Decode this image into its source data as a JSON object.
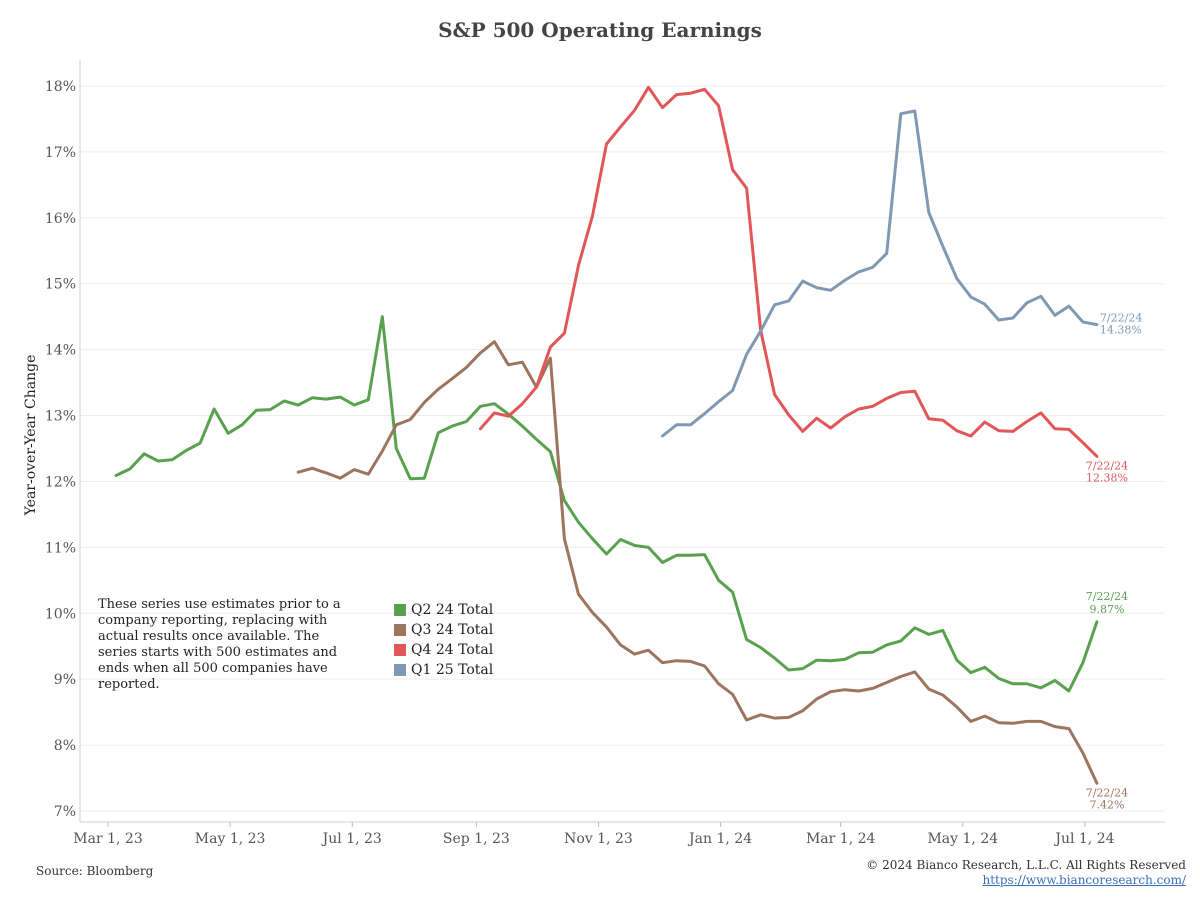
{
  "chart_data": {
    "type": "line",
    "title": "S&P 500 Operating Earnings",
    "ylabel": "Year-over-Year Change",
    "xlabel": "",
    "ylim": [
      7,
      18
    ],
    "xlim": [
      "2023-02-15",
      "2024-08-10"
    ],
    "yticks": [
      {
        "value": 7,
        "label": "7%"
      },
      {
        "value": 8,
        "label": "8%"
      },
      {
        "value": 9,
        "label": "9%"
      },
      {
        "value": 10,
        "label": "10%"
      },
      {
        "value": 11,
        "label": "11%"
      },
      {
        "value": 12,
        "label": "12%"
      },
      {
        "value": 13,
        "label": "13%"
      },
      {
        "value": 14,
        "label": "14%"
      },
      {
        "value": 15,
        "label": "15%"
      },
      {
        "value": 16,
        "label": "16%"
      },
      {
        "value": 17,
        "label": "17%"
      },
      {
        "value": 18,
        "label": "18%"
      }
    ],
    "xticks": [
      {
        "date": "2023-03-01",
        "label": "Mar 1, 23"
      },
      {
        "date": "2023-05-01",
        "label": "May 1, 23"
      },
      {
        "date": "2023-07-01",
        "label": "Jul 1, 23"
      },
      {
        "date": "2023-09-01",
        "label": "Sep 1, 23"
      },
      {
        "date": "2023-11-01",
        "label": "Nov 1, 23"
      },
      {
        "date": "2024-01-01",
        "label": "Jan 1, 24"
      },
      {
        "date": "2024-03-01",
        "label": "Mar 1, 24"
      },
      {
        "date": "2024-05-01",
        "label": "May 1, 24"
      },
      {
        "date": "2024-07-01",
        "label": "Jul 1, 24"
      }
    ],
    "grid": true,
    "legend_position": "bottom-left",
    "note": "These series use estimates prior to a company reporting, replacing with actual results once available. The series starts with 500 estimates and ends when all 500 companies have reported.",
    "series": [
      {
        "name": "Q2 24 Total",
        "color": "#59a14f",
        "end_label_date": "7/22/24",
        "end_label_value": "9.87%",
        "points": [
          [
            "2023-03-05",
            12.09
          ],
          [
            "2023-03-12",
            12.19
          ],
          [
            "2023-03-19",
            12.42
          ],
          [
            "2023-03-26",
            12.31
          ],
          [
            "2023-04-02",
            12.33
          ],
          [
            "2023-04-09",
            12.47
          ],
          [
            "2023-04-16",
            12.58
          ],
          [
            "2023-04-23",
            13.1
          ],
          [
            "2023-04-30",
            12.73
          ],
          [
            "2023-05-07",
            12.86
          ],
          [
            "2023-05-14",
            13.08
          ],
          [
            "2023-05-21",
            13.09
          ],
          [
            "2023-05-28",
            13.22
          ],
          [
            "2023-06-04",
            13.16
          ],
          [
            "2023-06-11",
            13.27
          ],
          [
            "2023-06-18",
            13.25
          ],
          [
            "2023-06-25",
            13.28
          ],
          [
            "2023-07-02",
            13.16
          ],
          [
            "2023-07-09",
            13.24
          ],
          [
            "2023-07-16",
            14.5
          ],
          [
            "2023-07-23",
            12.5
          ],
          [
            "2023-07-30",
            12.04
          ],
          [
            "2023-08-06",
            12.05
          ],
          [
            "2023-08-13",
            12.74
          ],
          [
            "2023-08-20",
            12.84
          ],
          [
            "2023-08-27",
            12.91
          ],
          [
            "2023-09-03",
            13.14
          ],
          [
            "2023-09-10",
            13.18
          ],
          [
            "2023-09-17",
            13.02
          ],
          [
            "2023-09-24",
            12.84
          ],
          [
            "2023-10-01",
            12.64
          ],
          [
            "2023-10-08",
            12.45
          ],
          [
            "2023-10-15",
            11.71
          ],
          [
            "2023-10-22",
            11.38
          ],
          [
            "2023-10-29",
            11.13
          ],
          [
            "2023-11-05",
            10.9
          ],
          [
            "2023-11-12",
            11.12
          ],
          [
            "2023-11-19",
            11.03
          ],
          [
            "2023-11-26",
            11.0
          ],
          [
            "2023-12-03",
            10.77
          ],
          [
            "2023-12-10",
            10.88
          ],
          [
            "2023-12-17",
            10.88
          ],
          [
            "2023-12-24",
            10.89
          ],
          [
            "2023-12-31",
            10.5
          ],
          [
            "2024-01-07",
            10.32
          ],
          [
            "2024-01-14",
            9.6
          ],
          [
            "2024-01-21",
            9.48
          ],
          [
            "2024-01-28",
            9.32
          ],
          [
            "2024-02-04",
            9.14
          ],
          [
            "2024-02-11",
            9.16
          ],
          [
            "2024-02-18",
            9.29
          ],
          [
            "2024-02-25",
            9.28
          ],
          [
            "2024-03-03",
            9.3
          ],
          [
            "2024-03-10",
            9.4
          ],
          [
            "2024-03-17",
            9.41
          ],
          [
            "2024-03-24",
            9.52
          ],
          [
            "2024-03-31",
            9.58
          ],
          [
            "2024-04-07",
            9.78
          ],
          [
            "2024-04-14",
            9.68
          ],
          [
            "2024-04-21",
            9.74
          ],
          [
            "2024-04-28",
            9.29
          ],
          [
            "2024-05-05",
            9.1
          ],
          [
            "2024-05-12",
            9.18
          ],
          [
            "2024-05-19",
            9.01
          ],
          [
            "2024-05-26",
            8.93
          ],
          [
            "2024-06-02",
            8.93
          ],
          [
            "2024-06-09",
            8.87
          ],
          [
            "2024-06-16",
            8.98
          ],
          [
            "2024-06-23",
            8.82
          ],
          [
            "2024-06-30",
            9.25
          ],
          [
            "2024-07-07",
            9.87
          ]
        ]
      },
      {
        "name": "Q3 24 Total",
        "color": "#9c755f",
        "end_label_date": "7/22/24",
        "end_label_value": "7.42%",
        "points": [
          [
            "2023-06-04",
            12.14
          ],
          [
            "2023-06-11",
            12.2
          ],
          [
            "2023-06-18",
            12.13
          ],
          [
            "2023-06-25",
            12.05
          ],
          [
            "2023-07-02",
            12.18
          ],
          [
            "2023-07-09",
            12.11
          ],
          [
            "2023-07-16",
            12.46
          ],
          [
            "2023-07-23",
            12.86
          ],
          [
            "2023-07-30",
            12.94
          ],
          [
            "2023-08-06",
            13.2
          ],
          [
            "2023-08-13",
            13.4
          ],
          [
            "2023-08-20",
            13.56
          ],
          [
            "2023-08-27",
            13.73
          ],
          [
            "2023-09-03",
            13.95
          ],
          [
            "2023-09-10",
            14.12
          ],
          [
            "2023-09-17",
            13.77
          ],
          [
            "2023-09-24",
            13.81
          ],
          [
            "2023-10-01",
            13.43
          ],
          [
            "2023-10-08",
            13.87
          ],
          [
            "2023-10-15",
            11.13
          ],
          [
            "2023-10-22",
            10.29
          ],
          [
            "2023-10-29",
            10.01
          ],
          [
            "2023-11-05",
            9.79
          ],
          [
            "2023-11-12",
            9.52
          ],
          [
            "2023-11-19",
            9.38
          ],
          [
            "2023-11-26",
            9.44
          ],
          [
            "2023-12-03",
            9.25
          ],
          [
            "2023-12-10",
            9.28
          ],
          [
            "2023-12-17",
            9.27
          ],
          [
            "2023-12-24",
            9.2
          ],
          [
            "2023-12-31",
            8.93
          ],
          [
            "2024-01-07",
            8.77
          ],
          [
            "2024-01-14",
            8.38
          ],
          [
            "2024-01-21",
            8.46
          ],
          [
            "2024-01-28",
            8.41
          ],
          [
            "2024-02-04",
            8.42
          ],
          [
            "2024-02-11",
            8.52
          ],
          [
            "2024-02-18",
            8.7
          ],
          [
            "2024-02-25",
            8.81
          ],
          [
            "2024-03-03",
            8.84
          ],
          [
            "2024-03-10",
            8.82
          ],
          [
            "2024-03-17",
            8.86
          ],
          [
            "2024-03-24",
            8.95
          ],
          [
            "2024-03-31",
            9.04
          ],
          [
            "2024-04-07",
            9.11
          ],
          [
            "2024-04-14",
            8.85
          ],
          [
            "2024-04-21",
            8.76
          ],
          [
            "2024-04-28",
            8.58
          ],
          [
            "2024-05-05",
            8.36
          ],
          [
            "2024-05-12",
            8.44
          ],
          [
            "2024-05-19",
            8.34
          ],
          [
            "2024-05-26",
            8.33
          ],
          [
            "2024-06-02",
            8.36
          ],
          [
            "2024-06-09",
            8.36
          ],
          [
            "2024-06-16",
            8.28
          ],
          [
            "2024-06-23",
            8.25
          ],
          [
            "2024-06-30",
            7.88
          ],
          [
            "2024-07-07",
            7.42
          ]
        ]
      },
      {
        "name": "Q4 24 Total",
        "color": "#e15759",
        "end_label_date": "7/22/24",
        "end_label_value": "12.38%",
        "points": [
          [
            "2023-09-03",
            12.8
          ],
          [
            "2023-09-10",
            13.04
          ],
          [
            "2023-09-17",
            12.99
          ],
          [
            "2023-09-24",
            13.18
          ],
          [
            "2023-10-01",
            13.43
          ],
          [
            "2023-10-08",
            14.04
          ],
          [
            "2023-10-15",
            14.25
          ],
          [
            "2023-10-22",
            15.28
          ],
          [
            "2023-10-29",
            16.03
          ],
          [
            "2023-11-05",
            17.12
          ],
          [
            "2023-11-12",
            17.38
          ],
          [
            "2023-11-19",
            17.63
          ],
          [
            "2023-11-26",
            17.98
          ],
          [
            "2023-12-03",
            17.67
          ],
          [
            "2023-12-10",
            17.87
          ],
          [
            "2023-12-17",
            17.89
          ],
          [
            "2023-12-24",
            17.95
          ],
          [
            "2023-12-31",
            17.7
          ],
          [
            "2024-01-07",
            16.73
          ],
          [
            "2024-01-14",
            16.45
          ],
          [
            "2024-01-21",
            14.3
          ],
          [
            "2024-01-28",
            13.32
          ],
          [
            "2024-02-04",
            13.01
          ],
          [
            "2024-02-11",
            12.76
          ],
          [
            "2024-02-18",
            12.96
          ],
          [
            "2024-02-25",
            12.81
          ],
          [
            "2024-03-03",
            12.98
          ],
          [
            "2024-03-10",
            13.1
          ],
          [
            "2024-03-17",
            13.14
          ],
          [
            "2024-03-24",
            13.26
          ],
          [
            "2024-03-31",
            13.35
          ],
          [
            "2024-04-07",
            13.37
          ],
          [
            "2024-04-14",
            12.95
          ],
          [
            "2024-04-21",
            12.93
          ],
          [
            "2024-04-28",
            12.77
          ],
          [
            "2024-05-05",
            12.69
          ],
          [
            "2024-05-12",
            12.9
          ],
          [
            "2024-05-19",
            12.77
          ],
          [
            "2024-05-26",
            12.76
          ],
          [
            "2024-06-02",
            12.91
          ],
          [
            "2024-06-09",
            13.04
          ],
          [
            "2024-06-16",
            12.8
          ],
          [
            "2024-06-23",
            12.79
          ],
          [
            "2024-06-30",
            12.59
          ],
          [
            "2024-07-07",
            12.38
          ]
        ]
      },
      {
        "name": "Q1 25 Total",
        "color": "#7f99b3",
        "end_label_date": "7/22/24",
        "end_label_value": "14.38%",
        "points": [
          [
            "2023-12-03",
            12.69
          ],
          [
            "2023-12-10",
            12.86
          ],
          [
            "2023-12-17",
            12.86
          ],
          [
            "2023-12-24",
            13.03
          ],
          [
            "2023-12-31",
            13.21
          ],
          [
            "2024-01-07",
            13.38
          ],
          [
            "2024-01-14",
            13.93
          ],
          [
            "2024-01-21",
            14.28
          ],
          [
            "2024-01-28",
            14.68
          ],
          [
            "2024-02-04",
            14.74
          ],
          [
            "2024-02-11",
            15.04
          ],
          [
            "2024-02-18",
            14.94
          ],
          [
            "2024-02-25",
            14.9
          ],
          [
            "2024-03-03",
            15.05
          ],
          [
            "2024-03-10",
            15.18
          ],
          [
            "2024-03-17",
            15.25
          ],
          [
            "2024-03-24",
            15.46
          ],
          [
            "2024-03-31",
            17.58
          ],
          [
            "2024-04-07",
            17.62
          ],
          [
            "2024-04-14",
            16.08
          ],
          [
            "2024-04-21",
            15.57
          ],
          [
            "2024-04-28",
            15.08
          ],
          [
            "2024-05-05",
            14.8
          ],
          [
            "2024-05-12",
            14.69
          ],
          [
            "2024-05-19",
            14.45
          ],
          [
            "2024-05-26",
            14.48
          ],
          [
            "2024-06-02",
            14.71
          ],
          [
            "2024-06-09",
            14.81
          ],
          [
            "2024-06-16",
            14.52
          ],
          [
            "2024-06-23",
            14.66
          ],
          [
            "2024-06-30",
            14.42
          ],
          [
            "2024-07-07",
            14.38
          ]
        ]
      }
    ]
  },
  "footer": {
    "source": "Source: Bloomberg",
    "copyright": "© 2024 Bianco Research, L.L.C. All Rights Reserved",
    "url": "https://www.biancoresearch.com/"
  }
}
